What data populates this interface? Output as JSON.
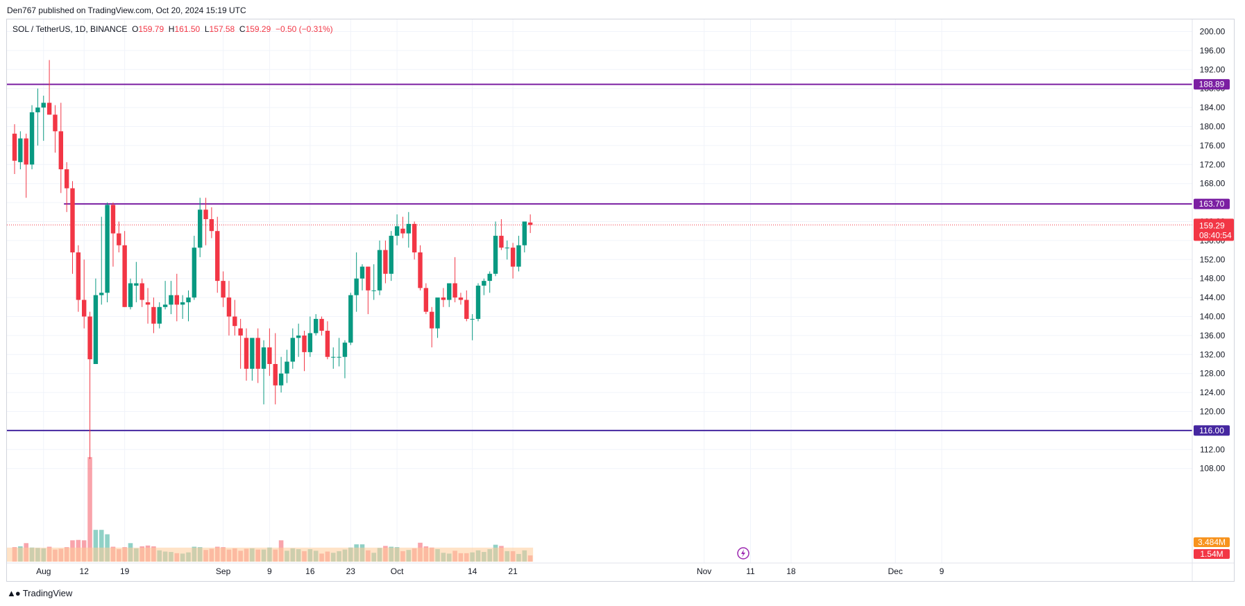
{
  "published": "Den767 published on TradingView.com, Oct 20, 2024 15:19 UTC",
  "legend": {
    "symbol": "SOL / TetherUS, 1D, BINANCE",
    "o_label": "O",
    "o": "159.79",
    "h_label": "H",
    "h": "161.50",
    "l_label": "L",
    "l": "157.58",
    "c_label": "C",
    "c": "159.29",
    "change": "−0.50 (−0.31%)"
  },
  "brand": "TradingView",
  "colors": {
    "up": "#089981",
    "down": "#f23645",
    "level": "#7b1fa2",
    "level_alt": "#311b92",
    "grid": "#f0f3fa",
    "volume_ma": "#ffcc99"
  },
  "chart_data": {
    "type": "candlestick",
    "symbol": "SOL / TetherUS",
    "interval": "1D",
    "exchange": "BINANCE",
    "y_axis": {
      "min": 106,
      "max": 202,
      "ticks": [
        "200.00",
        "196.00",
        "192.00",
        "188.00",
        "184.00",
        "180.00",
        "176.00",
        "172.00",
        "168.00",
        "164.00",
        "160.00",
        "156.00",
        "152.00",
        "148.00",
        "144.00",
        "140.00",
        "136.00",
        "132.00",
        "128.00",
        "124.00",
        "120.00",
        "116.00",
        "112.00",
        "108.00"
      ]
    },
    "x_axis": {
      "ticks": [
        "Aug",
        "12",
        "19",
        "Sep",
        "9",
        "16",
        "23",
        "Oct",
        "14",
        "21",
        "Nov",
        "11",
        "18",
        "Dec",
        "9"
      ],
      "tick_days": [
        5,
        12,
        19,
        36,
        44,
        51,
        58,
        66,
        79,
        86,
        119,
        127,
        134,
        152,
        160
      ]
    },
    "levels": [
      {
        "value": 188.89,
        "label": "188.89",
        "color": "#7b1fa2",
        "start_day": 0
      },
      {
        "value": 163.7,
        "label": "163.70",
        "color": "#7b1fa2",
        "start_day": 9
      },
      {
        "value": 116.0,
        "label": "116.00",
        "color": "#4527a0",
        "start_day": 0
      }
    ],
    "last_price": {
      "value": 159.29,
      "label": "159.29",
      "countdown": "08:40:54"
    },
    "volume": {
      "ma_label": "3.484M",
      "last_label": "1.54M"
    },
    "candles": [
      {
        "d": 0,
        "o": 178.5,
        "h": 180.5,
        "l": 170.0,
        "c": 172.8
      },
      {
        "d": 1,
        "o": 172.5,
        "h": 179.0,
        "l": 171.0,
        "c": 177.5
      },
      {
        "d": 2,
        "o": 177.5,
        "h": 178.5,
        "l": 165.0,
        "c": 172.0
      },
      {
        "d": 3,
        "o": 172.0,
        "h": 184.5,
        "l": 171.0,
        "c": 183.0
      },
      {
        "d": 4,
        "o": 183.0,
        "h": 188.0,
        "l": 176.0,
        "c": 184.0
      },
      {
        "d": 5,
        "o": 184.0,
        "h": 186.5,
        "l": 177.0,
        "c": 185.0
      },
      {
        "d": 6,
        "o": 185.0,
        "h": 194.0,
        "l": 182.5,
        "c": 182.5
      },
      {
        "d": 7,
        "o": 182.5,
        "h": 184.5,
        "l": 174.5,
        "c": 179.0
      },
      {
        "d": 8,
        "o": 179.0,
        "h": 185.0,
        "l": 166.0,
        "c": 171.0
      },
      {
        "d": 9,
        "o": 171.0,
        "h": 172.5,
        "l": 162.0,
        "c": 167.0
      },
      {
        "d": 10,
        "o": 167.0,
        "h": 168.5,
        "l": 149.0,
        "c": 153.5
      },
      {
        "d": 11,
        "o": 153.5,
        "h": 155.0,
        "l": 141.0,
        "c": 143.5
      },
      {
        "d": 12,
        "o": 143.5,
        "h": 152.0,
        "l": 137.5,
        "c": 140.0
      },
      {
        "d": 13,
        "o": 140.0,
        "h": 141.0,
        "l": 110.0,
        "c": 131.0
      },
      {
        "d": 14,
        "o": 130.0,
        "h": 148.0,
        "l": 130.0,
        "c": 144.5
      },
      {
        "d": 15,
        "o": 144.5,
        "h": 161.0,
        "l": 142.5,
        "c": 145.0
      },
      {
        "d": 16,
        "o": 145.0,
        "h": 164.0,
        "l": 143.0,
        "c": 163.5
      },
      {
        "d": 17,
        "o": 163.5,
        "h": 164.0,
        "l": 150.5,
        "c": 157.5
      },
      {
        "d": 18,
        "o": 157.5,
        "h": 160.0,
        "l": 153.5,
        "c": 155.0
      },
      {
        "d": 19,
        "o": 155.0,
        "h": 158.0,
        "l": 142.0,
        "c": 142.0
      },
      {
        "d": 20,
        "o": 142.0,
        "h": 148.0,
        "l": 141.5,
        "c": 147.0
      },
      {
        "d": 21,
        "o": 146.5,
        "h": 151.5,
        "l": 143.0,
        "c": 147.0
      },
      {
        "d": 22,
        "o": 147.0,
        "h": 148.0,
        "l": 142.0,
        "c": 143.5
      },
      {
        "d": 23,
        "o": 143.0,
        "h": 146.0,
        "l": 138.5,
        "c": 142.5
      },
      {
        "d": 24,
        "o": 142.0,
        "h": 144.0,
        "l": 136.5,
        "c": 138.5
      },
      {
        "d": 25,
        "o": 138.5,
        "h": 143.0,
        "l": 137.5,
        "c": 142.0
      },
      {
        "d": 26,
        "o": 142.0,
        "h": 147.5,
        "l": 141.5,
        "c": 142.5
      },
      {
        "d": 27,
        "o": 142.5,
        "h": 147.5,
        "l": 140.5,
        "c": 144.5
      },
      {
        "d": 28,
        "o": 144.5,
        "h": 149.0,
        "l": 139.0,
        "c": 142.5
      },
      {
        "d": 29,
        "o": 142.5,
        "h": 144.5,
        "l": 139.5,
        "c": 143.0
      },
      {
        "d": 30,
        "o": 143.0,
        "h": 145.5,
        "l": 139.0,
        "c": 144.0
      },
      {
        "d": 31,
        "o": 144.0,
        "h": 157.0,
        "l": 143.5,
        "c": 154.5
      },
      {
        "d": 32,
        "o": 154.5,
        "h": 165.0,
        "l": 152.5,
        "c": 162.5
      },
      {
        "d": 33,
        "o": 162.5,
        "h": 165.0,
        "l": 155.0,
        "c": 160.5
      },
      {
        "d": 34,
        "o": 160.5,
        "h": 163.0,
        "l": 156.5,
        "c": 158.0
      },
      {
        "d": 35,
        "o": 158.0,
        "h": 161.0,
        "l": 145.0,
        "c": 147.5
      },
      {
        "d": 36,
        "o": 147.5,
        "h": 149.5,
        "l": 142.0,
        "c": 144.0
      },
      {
        "d": 37,
        "o": 144.0,
        "h": 147.5,
        "l": 136.0,
        "c": 140.0
      },
      {
        "d": 38,
        "o": 140.0,
        "h": 143.5,
        "l": 136.0,
        "c": 138.0
      },
      {
        "d": 39,
        "o": 137.5,
        "h": 139.5,
        "l": 129.0,
        "c": 136.0
      },
      {
        "d": 40,
        "o": 135.5,
        "h": 137.5,
        "l": 126.5,
        "c": 129.0
      },
      {
        "d": 41,
        "o": 129.0,
        "h": 135.0,
        "l": 126.5,
        "c": 135.5
      },
      {
        "d": 42,
        "o": 135.5,
        "h": 137.5,
        "l": 126.0,
        "c": 129.0
      },
      {
        "d": 43,
        "o": 129.0,
        "h": 135.0,
        "l": 121.5,
        "c": 133.5
      },
      {
        "d": 44,
        "o": 133.5,
        "h": 137.5,
        "l": 127.5,
        "c": 130.0
      },
      {
        "d": 45,
        "o": 130.0,
        "h": 136.5,
        "l": 121.5,
        "c": 125.5
      },
      {
        "d": 46,
        "o": 125.5,
        "h": 131.5,
        "l": 124.0,
        "c": 128.0
      },
      {
        "d": 47,
        "o": 128.0,
        "h": 133.0,
        "l": 126.0,
        "c": 130.5
      },
      {
        "d": 48,
        "o": 130.5,
        "h": 137.5,
        "l": 129.0,
        "c": 135.5
      },
      {
        "d": 49,
        "o": 135.5,
        "h": 138.5,
        "l": 131.5,
        "c": 136.0
      },
      {
        "d": 50,
        "o": 136.0,
        "h": 137.0,
        "l": 128.5,
        "c": 132.5
      },
      {
        "d": 51,
        "o": 132.5,
        "h": 140.0,
        "l": 131.5,
        "c": 136.5
      },
      {
        "d": 52,
        "o": 136.5,
        "h": 140.5,
        "l": 136.0,
        "c": 139.5
      },
      {
        "d": 53,
        "o": 139.5,
        "h": 140.0,
        "l": 136.0,
        "c": 137.0
      },
      {
        "d": 54,
        "o": 137.0,
        "h": 139.0,
        "l": 131.0,
        "c": 131.5
      },
      {
        "d": 55,
        "o": 131.5,
        "h": 133.5,
        "l": 129.0,
        "c": 131.5
      },
      {
        "d": 56,
        "o": 131.5,
        "h": 135.5,
        "l": 129.5,
        "c": 131.5
      },
      {
        "d": 57,
        "o": 131.5,
        "h": 135.0,
        "l": 127.0,
        "c": 134.5
      },
      {
        "d": 58,
        "o": 134.5,
        "h": 145.0,
        "l": 134.0,
        "c": 144.5
      },
      {
        "d": 59,
        "o": 144.5,
        "h": 153.5,
        "l": 141.0,
        "c": 148.0
      },
      {
        "d": 60,
        "o": 148.0,
        "h": 151.0,
        "l": 145.5,
        "c": 150.5
      },
      {
        "d": 61,
        "o": 150.5,
        "h": 150.5,
        "l": 140.5,
        "c": 145.5
      },
      {
        "d": 62,
        "o": 145.5,
        "h": 151.0,
        "l": 143.5,
        "c": 145.5
      },
      {
        "d": 63,
        "o": 145.5,
        "h": 156.0,
        "l": 144.5,
        "c": 154.0
      },
      {
        "d": 64,
        "o": 154.0,
        "h": 156.0,
        "l": 147.0,
        "c": 149.0
      },
      {
        "d": 65,
        "o": 149.0,
        "h": 158.0,
        "l": 147.5,
        "c": 157.0
      },
      {
        "d": 66,
        "o": 157.0,
        "h": 161.5,
        "l": 155.0,
        "c": 159.0
      },
      {
        "d": 67,
        "o": 158.5,
        "h": 161.0,
        "l": 156.5,
        "c": 157.5
      },
      {
        "d": 68,
        "o": 157.5,
        "h": 162.0,
        "l": 154.5,
        "c": 159.5
      },
      {
        "d": 69,
        "o": 159.5,
        "h": 160.0,
        "l": 152.0,
        "c": 153.5
      },
      {
        "d": 70,
        "o": 153.5,
        "h": 155.0,
        "l": 145.5,
        "c": 146.0
      },
      {
        "d": 71,
        "o": 146.0,
        "h": 147.0,
        "l": 140.5,
        "c": 141.0
      },
      {
        "d": 72,
        "o": 141.0,
        "h": 142.0,
        "l": 133.5,
        "c": 137.5
      },
      {
        "d": 73,
        "o": 137.5,
        "h": 143.5,
        "l": 135.5,
        "c": 144.0
      },
      {
        "d": 74,
        "o": 144.0,
        "h": 146.0,
        "l": 142.0,
        "c": 143.5
      },
      {
        "d": 75,
        "o": 143.5,
        "h": 147.0,
        "l": 142.0,
        "c": 147.0
      },
      {
        "d": 76,
        "o": 147.0,
        "h": 152.5,
        "l": 143.0,
        "c": 144.0
      },
      {
        "d": 77,
        "o": 144.0,
        "h": 145.0,
        "l": 142.5,
        "c": 143.5
      },
      {
        "d": 78,
        "o": 143.5,
        "h": 145.5,
        "l": 139.0,
        "c": 139.5
      },
      {
        "d": 79,
        "o": 139.5,
        "h": 140.5,
        "l": 135.0,
        "c": 139.5
      },
      {
        "d": 80,
        "o": 139.5,
        "h": 147.0,
        "l": 139.0,
        "c": 146.5
      },
      {
        "d": 81,
        "o": 146.5,
        "h": 148.0,
        "l": 144.5,
        "c": 147.5
      },
      {
        "d": 82,
        "o": 147.5,
        "h": 149.5,
        "l": 145.0,
        "c": 149.0
      },
      {
        "d": 83,
        "o": 149.0,
        "h": 160.0,
        "l": 148.5,
        "c": 157.0
      },
      {
        "d": 84,
        "o": 157.0,
        "h": 160.5,
        "l": 154.0,
        "c": 154.5
      },
      {
        "d": 85,
        "o": 154.5,
        "h": 156.0,
        "l": 152.0,
        "c": 154.5
      },
      {
        "d": 86,
        "o": 154.5,
        "h": 155.5,
        "l": 148.0,
        "c": 150.5
      },
      {
        "d": 87,
        "o": 150.5,
        "h": 157.0,
        "l": 149.5,
        "c": 155.0
      },
      {
        "d": 88,
        "o": 155.0,
        "h": 160.0,
        "l": 153.5,
        "c": 160.0
      },
      {
        "d": 89,
        "o": 159.79,
        "h": 161.5,
        "l": 157.58,
        "c": 159.29
      }
    ],
    "volumes": [
      {
        "d": 0,
        "v": 3.6,
        "up": false
      },
      {
        "d": 1,
        "v": 3.8,
        "up": true
      },
      {
        "d": 2,
        "v": 4.6,
        "up": false
      },
      {
        "d": 3,
        "v": 3.5,
        "up": true
      },
      {
        "d": 4,
        "v": 3.4,
        "up": true
      },
      {
        "d": 5,
        "v": 3.3,
        "up": true
      },
      {
        "d": 6,
        "v": 3.7,
        "up": false
      },
      {
        "d": 7,
        "v": 3.0,
        "up": false
      },
      {
        "d": 8,
        "v": 3.2,
        "up": false
      },
      {
        "d": 9,
        "v": 3.6,
        "up": false
      },
      {
        "d": 10,
        "v": 5.3,
        "up": false
      },
      {
        "d": 11,
        "v": 5.4,
        "up": false
      },
      {
        "d": 12,
        "v": 5.3,
        "up": false
      },
      {
        "d": 13,
        "v": 26.0,
        "up": false
      },
      {
        "d": 14,
        "v": 7.9,
        "up": true
      },
      {
        "d": 15,
        "v": 7.9,
        "up": true
      },
      {
        "d": 16,
        "v": 6.8,
        "up": true
      },
      {
        "d": 17,
        "v": 3.7,
        "up": false
      },
      {
        "d": 18,
        "v": 3.1,
        "up": false
      },
      {
        "d": 19,
        "v": 3.6,
        "up": false
      },
      {
        "d": 20,
        "v": 4.6,
        "up": true
      },
      {
        "d": 21,
        "v": 3.3,
        "up": true
      },
      {
        "d": 22,
        "v": 3.8,
        "up": false
      },
      {
        "d": 23,
        "v": 4.0,
        "up": false
      },
      {
        "d": 24,
        "v": 3.8,
        "up": false
      },
      {
        "d": 25,
        "v": 2.8,
        "up": true
      },
      {
        "d": 26,
        "v": 2.5,
        "up": true
      },
      {
        "d": 27,
        "v": 2.4,
        "up": true
      },
      {
        "d": 28,
        "v": 2.1,
        "up": false
      },
      {
        "d": 29,
        "v": 2.0,
        "up": true
      },
      {
        "d": 30,
        "v": 2.3,
        "up": true
      },
      {
        "d": 31,
        "v": 3.7,
        "up": true
      },
      {
        "d": 32,
        "v": 3.6,
        "up": true
      },
      {
        "d": 33,
        "v": 2.9,
        "up": false
      },
      {
        "d": 34,
        "v": 3.2,
        "up": false
      },
      {
        "d": 35,
        "v": 3.7,
        "up": false
      },
      {
        "d": 36,
        "v": 3.6,
        "up": false
      },
      {
        "d": 37,
        "v": 3.0,
        "up": false
      },
      {
        "d": 38,
        "v": 3.3,
        "up": false
      },
      {
        "d": 39,
        "v": 2.7,
        "up": false
      },
      {
        "d": 40,
        "v": 3.2,
        "up": false
      },
      {
        "d": 41,
        "v": 3.3,
        "up": true
      },
      {
        "d": 42,
        "v": 3.0,
        "up": false
      },
      {
        "d": 43,
        "v": 3.0,
        "up": true
      },
      {
        "d": 44,
        "v": 3.5,
        "up": true
      },
      {
        "d": 45,
        "v": 3.0,
        "up": false
      },
      {
        "d": 46,
        "v": 5.3,
        "up": false
      },
      {
        "d": 47,
        "v": 2.7,
        "up": true
      },
      {
        "d": 48,
        "v": 3.3,
        "up": true
      },
      {
        "d": 49,
        "v": 3.1,
        "up": true
      },
      {
        "d": 50,
        "v": 2.6,
        "up": false
      },
      {
        "d": 51,
        "v": 3.1,
        "up": true
      },
      {
        "d": 52,
        "v": 2.7,
        "up": true
      },
      {
        "d": 53,
        "v": 2.0,
        "up": false
      },
      {
        "d": 54,
        "v": 2.5,
        "up": false
      },
      {
        "d": 55,
        "v": 2.2,
        "up": true
      },
      {
        "d": 56,
        "v": 2.6,
        "up": true
      },
      {
        "d": 57,
        "v": 3.0,
        "up": true
      },
      {
        "d": 58,
        "v": 3.5,
        "up": true
      },
      {
        "d": 59,
        "v": 4.3,
        "up": true
      },
      {
        "d": 60,
        "v": 4.3,
        "up": true
      },
      {
        "d": 61,
        "v": 2.8,
        "up": false
      },
      {
        "d": 62,
        "v": 2.2,
        "up": true
      },
      {
        "d": 63,
        "v": 3.4,
        "up": true
      },
      {
        "d": 64,
        "v": 3.9,
        "up": false
      },
      {
        "d": 65,
        "v": 3.7,
        "up": true
      },
      {
        "d": 66,
        "v": 3.6,
        "up": true
      },
      {
        "d": 67,
        "v": 2.6,
        "up": false
      },
      {
        "d": 68,
        "v": 2.9,
        "up": true
      },
      {
        "d": 69,
        "v": 3.3,
        "up": false
      },
      {
        "d": 70,
        "v": 4.7,
        "up": false
      },
      {
        "d": 71,
        "v": 3.8,
        "up": false
      },
      {
        "d": 72,
        "v": 3.5,
        "up": false
      },
      {
        "d": 73,
        "v": 3.1,
        "up": true
      },
      {
        "d": 74,
        "v": 2.2,
        "up": true
      },
      {
        "d": 75,
        "v": 2.0,
        "up": true
      },
      {
        "d": 76,
        "v": 2.7,
        "up": false
      },
      {
        "d": 77,
        "v": 2.1,
        "up": false
      },
      {
        "d": 78,
        "v": 2.1,
        "up": false
      },
      {
        "d": 79,
        "v": 2.3,
        "up": true
      },
      {
        "d": 80,
        "v": 2.8,
        "up": true
      },
      {
        "d": 81,
        "v": 2.4,
        "up": true
      },
      {
        "d": 82,
        "v": 3.1,
        "up": true
      },
      {
        "d": 83,
        "v": 4.2,
        "up": true
      },
      {
        "d": 84,
        "v": 3.9,
        "up": false
      },
      {
        "d": 85,
        "v": 2.6,
        "up": true
      },
      {
        "d": 86,
        "v": 2.6,
        "up": false
      },
      {
        "d": 87,
        "v": 1.9,
        "up": true
      },
      {
        "d": 88,
        "v": 2.8,
        "up": true
      },
      {
        "d": 89,
        "v": 1.54,
        "up": false
      }
    ]
  }
}
